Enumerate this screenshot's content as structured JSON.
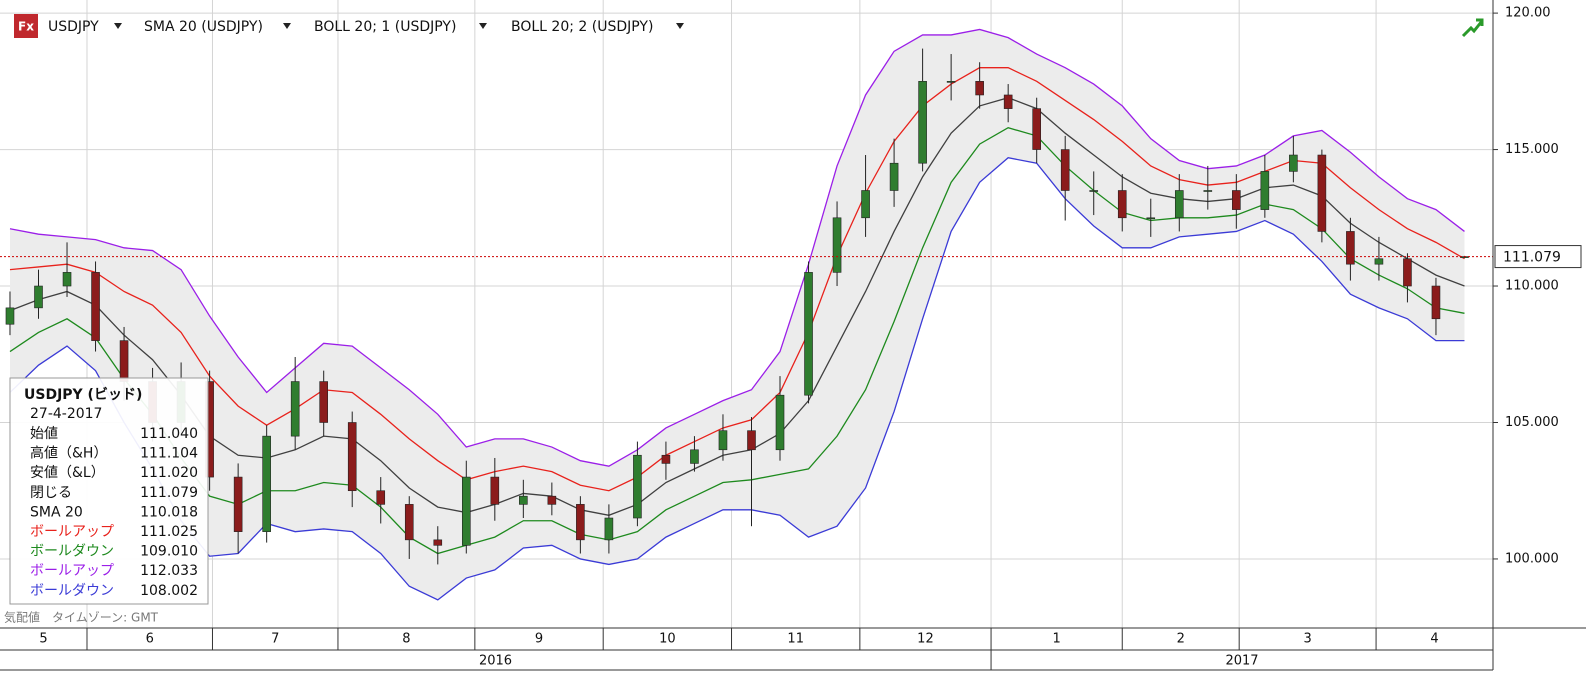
{
  "toolbar": {
    "items": [
      "USDJPY",
      "SMA 20 (USDJPY)",
      "BOLL 20; 1 (USDJPY)",
      "BOLL 20; 2 (USDJPY)"
    ]
  },
  "info_box": {
    "title": "USDJPY (ビッド)",
    "date": "27-4-2017",
    "labels": [
      "始値",
      "高値（&H）",
      "安値（&L）",
      "閉じる"
    ],
    "values": [
      "111.040",
      "111.104",
      "111.020",
      "111.079",
      "110.018",
      "111.025",
      "109.010",
      "112.033",
      "108.002"
    ]
  },
  "footer": "気配値　タイムゾーン: GMT",
  "chart_data": {
    "type": "candlestick",
    "open": [
      108.6,
      109.2,
      110.0,
      110.5,
      108.0,
      106.5,
      105.0,
      106.5,
      103.0,
      101.0,
      104.5,
      106.5,
      105.0,
      102.5,
      102.0,
      100.7,
      100.5,
      103.0,
      102.0,
      102.3,
      102.0,
      100.7,
      101.5,
      103.8,
      103.5,
      104.0,
      104.7,
      104.0,
      106.0,
      110.5,
      112.5,
      113.5,
      114.5,
      117.5,
      117.5,
      117.0,
      116.5,
      115.0,
      113.5,
      113.5,
      112.5,
      112.5,
      113.5,
      113.5,
      112.8,
      114.2,
      114.8,
      112.0,
      110.8,
      111.0,
      110.0,
      111.04
    ],
    "high": [
      109.8,
      110.6,
      111.6,
      110.9,
      108.5,
      107.0,
      107.2,
      106.9,
      103.5,
      104.9,
      107.4,
      106.9,
      105.4,
      103.0,
      102.3,
      101.2,
      103.6,
      103.7,
      102.9,
      102.8,
      102.3,
      102.0,
      104.3,
      104.3,
      104.5,
      105.3,
      105.2,
      106.7,
      110.9,
      113.1,
      114.8,
      115.4,
      118.7,
      118.5,
      118.2,
      117.4,
      116.9,
      115.5,
      114.2,
      114.1,
      113.2,
      114.1,
      114.4,
      114.1,
      114.8,
      115.5,
      115.0,
      112.5,
      111.8,
      111.2,
      110.3,
      111.104
    ],
    "low": [
      108.2,
      108.8,
      109.6,
      107.6,
      105.8,
      104.3,
      104.5,
      102.5,
      100.2,
      100.6,
      104.0,
      104.5,
      101.9,
      101.3,
      100.0,
      99.8,
      100.2,
      101.4,
      101.5,
      101.6,
      100.2,
      100.2,
      101.2,
      102.9,
      103.2,
      103.6,
      101.2,
      103.6,
      105.7,
      110.0,
      111.8,
      112.9,
      114.2,
      116.8,
      116.5,
      116.0,
      114.5,
      112.4,
      112.6,
      112.0,
      111.8,
      112.0,
      112.8,
      112.1,
      112.5,
      113.8,
      111.6,
      110.2,
      110.2,
      109.4,
      108.2,
      111.02
    ],
    "close": [
      109.2,
      110.0,
      110.5,
      108.0,
      106.5,
      105.0,
      106.5,
      103.0,
      101.0,
      104.5,
      106.5,
      105.0,
      102.5,
      102.0,
      100.7,
      100.5,
      103.0,
      102.0,
      102.3,
      102.0,
      100.7,
      101.5,
      103.8,
      103.5,
      104.0,
      104.7,
      104.0,
      106.0,
      110.5,
      112.5,
      113.5,
      114.5,
      117.5,
      117.5,
      117.0,
      116.5,
      115.0,
      113.5,
      113.5,
      112.5,
      112.5,
      113.5,
      113.5,
      112.8,
      114.2,
      114.8,
      112.0,
      110.8,
      111.0,
      110.0,
      108.8,
      111.079
    ],
    "up_color": "#2f7d2f",
    "down_color": "#8b1c1c",
    "series": [
      {
        "name": "SMA 20",
        "color": "#404040",
        "values": [
          109.1,
          109.5,
          109.8,
          109.3,
          108.2,
          107.3,
          106.0,
          104.5,
          103.8,
          103.7,
          104.0,
          104.5,
          104.4,
          103.6,
          102.6,
          101.9,
          101.7,
          102.0,
          102.4,
          102.3,
          101.8,
          101.6,
          102.0,
          102.8,
          103.3,
          103.8,
          104.0,
          104.6,
          105.8,
          107.8,
          109.8,
          112.0,
          114.0,
          115.6,
          116.6,
          116.9,
          116.5,
          115.6,
          114.8,
          114.0,
          113.4,
          113.2,
          113.1,
          113.2,
          113.6,
          113.7,
          113.3,
          112.3,
          111.6,
          111.0,
          110.4,
          110.0
        ]
      },
      {
        "name": "ボールアップ",
        "color": "#e8221c",
        "values": [
          110.6,
          110.7,
          110.8,
          110.5,
          109.8,
          109.3,
          108.3,
          106.7,
          105.6,
          104.9,
          105.5,
          106.2,
          106.1,
          105.3,
          104.4,
          103.6,
          102.9,
          103.2,
          103.4,
          103.2,
          102.7,
          102.5,
          103.0,
          103.8,
          104.3,
          104.8,
          105.1,
          106.1,
          108.3,
          111.1,
          113.4,
          115.3,
          116.6,
          117.4,
          118.0,
          118.0,
          117.5,
          116.8,
          116.1,
          115.3,
          114.4,
          113.9,
          113.7,
          113.8,
          114.2,
          114.6,
          114.5,
          113.6,
          112.8,
          112.1,
          111.6,
          111.0
        ]
      },
      {
        "name": "ボールダウン",
        "color": "#1e8a1e",
        "values": [
          107.6,
          108.3,
          108.8,
          108.1,
          106.6,
          105.3,
          103.7,
          102.3,
          102.0,
          102.5,
          102.5,
          102.8,
          102.7,
          101.9,
          100.8,
          100.2,
          100.5,
          100.8,
          101.4,
          101.4,
          100.9,
          100.7,
          101.0,
          101.8,
          102.3,
          102.8,
          102.9,
          103.1,
          103.3,
          104.5,
          106.2,
          108.7,
          111.4,
          113.8,
          115.2,
          115.8,
          115.5,
          114.4,
          113.5,
          112.7,
          112.4,
          112.5,
          112.5,
          112.6,
          113.0,
          112.8,
          112.1,
          111.0,
          110.4,
          109.9,
          109.2,
          109.0
        ]
      },
      {
        "name": "ボールアップ",
        "color": "#9b1fe8",
        "values": [
          112.1,
          111.9,
          111.8,
          111.7,
          111.4,
          111.3,
          110.6,
          108.9,
          107.4,
          106.1,
          107.0,
          107.9,
          107.8,
          107.0,
          106.2,
          105.3,
          104.1,
          104.4,
          104.4,
          104.1,
          103.6,
          103.4,
          104.0,
          104.8,
          105.3,
          105.8,
          106.2,
          107.6,
          110.8,
          114.4,
          117.0,
          118.6,
          119.2,
          119.2,
          119.4,
          119.1,
          118.5,
          118.0,
          117.4,
          116.6,
          115.4,
          114.6,
          114.3,
          114.4,
          114.8,
          115.5,
          115.7,
          114.9,
          114.0,
          113.2,
          112.8,
          112.0
        ]
      },
      {
        "name": "ボールダウン",
        "color": "#3b3bd6",
        "values": [
          106.1,
          107.1,
          107.8,
          106.9,
          105.0,
          103.3,
          101.4,
          100.1,
          100.2,
          101.3,
          101.0,
          101.1,
          101.0,
          100.2,
          99.0,
          98.5,
          99.3,
          99.6,
          100.4,
          100.5,
          100.0,
          99.8,
          100.0,
          100.8,
          101.3,
          101.8,
          101.8,
          101.6,
          100.8,
          101.2,
          102.6,
          105.4,
          108.8,
          112.0,
          113.8,
          114.7,
          114.5,
          113.2,
          112.2,
          111.4,
          111.4,
          111.8,
          111.9,
          112.0,
          112.4,
          111.9,
          110.9,
          109.7,
          109.2,
          108.8,
          108.0,
          108.0
        ]
      }
    ],
    "band_fill": "#ececec",
    "current_price": 111.079,
    "ylim": [
      97.47,
      120.48
    ],
    "yticks": [
      {
        "value": 100,
        "label": "100.000"
      },
      {
        "value": 105,
        "label": "105.000"
      },
      {
        "value": 110,
        "label": "110.000"
      },
      {
        "value": 115,
        "label": "115.000"
      },
      {
        "value": 120,
        "label": "120.00"
      }
    ],
    "xlim": [
      -0.35,
      52.0
    ],
    "month_boundaries": [
      2.7,
      7.1,
      11.5,
      16.3,
      20.8,
      25.3,
      29.8,
      34.4,
      39.0,
      43.1,
      47.9
    ],
    "month_labels": [
      "5",
      "6",
      "7",
      "8",
      "9",
      "10",
      "11",
      "12",
      "1",
      "2",
      "3",
      "4"
    ],
    "year_boundary": 34.4,
    "year_labels": [
      "2016",
      "2017"
    ],
    "grid": true
  }
}
